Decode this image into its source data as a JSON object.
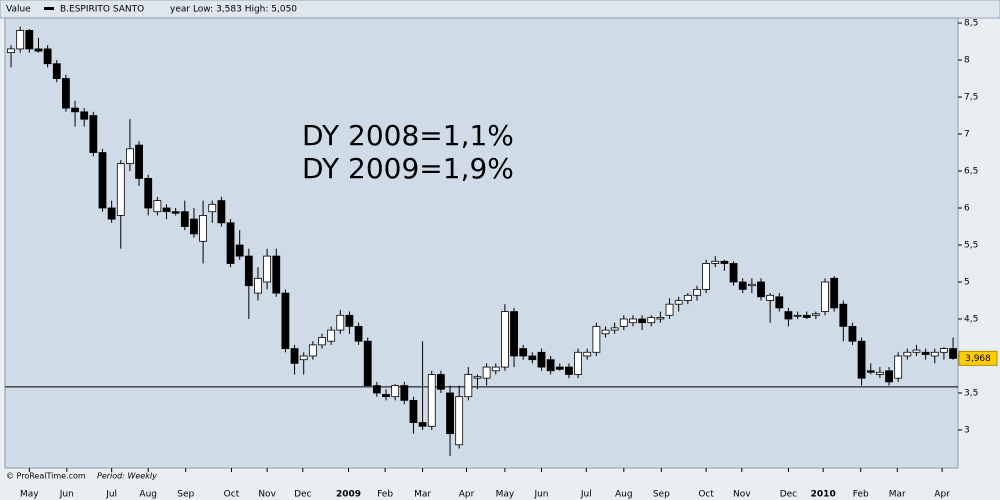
{
  "chart_data": {
    "type": "candlestick",
    "header_label": "Value",
    "series_name": "B.ESPIRITO SANTO",
    "stats": "year Low: 3,583 High: 5,050",
    "annotations": [
      "DY 2008=1,1%",
      "DY 2009=1,9%"
    ],
    "source": "© ProRealTime.com",
    "period": "Period: Weekly",
    "up_color": "#ffffff",
    "down_color": "#000000",
    "candles": [
      [
        8.1,
        8.2,
        7.9,
        8.15
      ],
      [
        8.15,
        8.45,
        8.1,
        8.4
      ],
      [
        8.4,
        8.42,
        8.1,
        8.15
      ],
      [
        8.15,
        8.3,
        8.1,
        8.12
      ],
      [
        8.15,
        8.2,
        7.9,
        7.95
      ],
      [
        7.95,
        8.0,
        7.7,
        7.75
      ],
      [
        7.75,
        7.8,
        7.3,
        7.35
      ],
      [
        7.35,
        7.45,
        7.1,
        7.3
      ],
      [
        7.3,
        7.35,
        7.1,
        7.2
      ],
      [
        7.25,
        7.3,
        6.7,
        6.75
      ],
      [
        6.75,
        6.8,
        5.95,
        6.0
      ],
      [
        6.0,
        6.1,
        5.8,
        5.85
      ],
      [
        5.9,
        6.65,
        5.45,
        6.6
      ],
      [
        6.6,
        7.2,
        6.5,
        6.8
      ],
      [
        6.85,
        6.9,
        6.3,
        6.4
      ],
      [
        6.4,
        6.45,
        5.9,
        6.0
      ],
      [
        5.95,
        6.15,
        5.9,
        6.1
      ],
      [
        6.0,
        6.05,
        5.85,
        5.95
      ],
      [
        5.95,
        6.0,
        5.9,
        5.93
      ],
      [
        5.95,
        6.1,
        5.7,
        5.75
      ],
      [
        5.85,
        6.0,
        5.6,
        5.65
      ],
      [
        5.55,
        6.1,
        5.25,
        5.9
      ],
      [
        5.95,
        6.1,
        5.8,
        6.05
      ],
      [
        6.1,
        6.15,
        5.75,
        5.8
      ],
      [
        5.8,
        5.85,
        5.2,
        5.25
      ],
      [
        5.5,
        5.7,
        5.3,
        5.35
      ],
      [
        5.35,
        5.45,
        4.5,
        4.95
      ],
      [
        4.85,
        5.2,
        4.75,
        5.05
      ],
      [
        5.0,
        5.45,
        4.9,
        5.35
      ],
      [
        5.35,
        5.45,
        4.8,
        4.85
      ],
      [
        4.85,
        4.9,
        4.05,
        4.1
      ],
      [
        4.1,
        4.15,
        3.75,
        3.9
      ],
      [
        3.95,
        4.05,
        3.75,
        4.0
      ],
      [
        4.0,
        4.2,
        3.95,
        4.15
      ],
      [
        4.15,
        4.3,
        4.1,
        4.25
      ],
      [
        4.2,
        4.4,
        4.15,
        4.35
      ],
      [
        4.35,
        4.62,
        4.3,
        4.55
      ],
      [
        4.55,
        4.6,
        4.3,
        4.4
      ],
      [
        4.4,
        4.45,
        4.15,
        4.2
      ],
      [
        4.2,
        4.25,
        3.6,
        3.6
      ],
      [
        3.6,
        3.65,
        3.45,
        3.5
      ],
      [
        3.48,
        3.55,
        3.4,
        3.45
      ],
      [
        3.45,
        3.62,
        3.4,
        3.6
      ],
      [
        3.6,
        3.65,
        3.35,
        3.4
      ],
      [
        3.4,
        3.45,
        2.95,
        3.1
      ],
      [
        3.1,
        4.2,
        3.0,
        3.05
      ],
      [
        3.05,
        3.8,
        3.0,
        3.75
      ],
      [
        3.75,
        3.8,
        3.5,
        3.55
      ],
      [
        3.5,
        3.6,
        2.65,
        2.95
      ],
      [
        2.8,
        3.6,
        2.75,
        3.45
      ],
      [
        3.45,
        3.85,
        3.4,
        3.75
      ],
      [
        3.7,
        3.75,
        3.55,
        3.72
      ],
      [
        3.7,
        3.9,
        3.6,
        3.85
      ],
      [
        3.8,
        3.9,
        3.75,
        3.85
      ],
      [
        3.85,
        4.7,
        3.8,
        4.6
      ],
      [
        4.6,
        4.65,
        3.85,
        4.0
      ],
      [
        4.1,
        4.15,
        3.95,
        4.0
      ],
      [
        4.0,
        4.05,
        3.9,
        3.95
      ],
      [
        4.05,
        4.1,
        3.8,
        3.85
      ],
      [
        3.95,
        4.0,
        3.75,
        3.8
      ],
      [
        3.85,
        3.9,
        3.8,
        3.82
      ],
      [
        3.85,
        3.9,
        3.7,
        3.75
      ],
      [
        3.75,
        4.1,
        3.7,
        4.05
      ],
      [
        4.0,
        4.1,
        3.95,
        4.05
      ],
      [
        4.05,
        4.45,
        4.0,
        4.4
      ],
      [
        4.3,
        4.4,
        4.25,
        4.35
      ],
      [
        4.35,
        4.45,
        4.3,
        4.38
      ],
      [
        4.4,
        4.55,
        4.35,
        4.5
      ],
      [
        4.45,
        4.55,
        4.4,
        4.5
      ],
      [
        4.5,
        4.55,
        4.35,
        4.45
      ],
      [
        4.45,
        4.55,
        4.4,
        4.52
      ],
      [
        4.5,
        4.6,
        4.45,
        4.52
      ],
      [
        4.55,
        4.78,
        4.5,
        4.7
      ],
      [
        4.7,
        4.8,
        4.6,
        4.75
      ],
      [
        4.75,
        4.85,
        4.7,
        4.82
      ],
      [
        4.82,
        4.95,
        4.75,
        4.9
      ],
      [
        4.9,
        5.3,
        4.85,
        5.25
      ],
      [
        5.25,
        5.35,
        5.2,
        5.28
      ],
      [
        5.28,
        5.3,
        5.15,
        5.25
      ],
      [
        5.25,
        5.28,
        4.95,
        5.0
      ],
      [
        5.0,
        5.05,
        4.85,
        4.9
      ],
      [
        4.95,
        5.05,
        4.85,
        4.97
      ],
      [
        5.0,
        5.05,
        4.75,
        4.8
      ],
      [
        4.75,
        4.85,
        4.45,
        4.82
      ],
      [
        4.8,
        4.85,
        4.6,
        4.65
      ],
      [
        4.6,
        4.65,
        4.4,
        4.5
      ],
      [
        4.55,
        4.6,
        4.5,
        4.55
      ],
      [
        4.55,
        4.6,
        4.5,
        4.52
      ],
      [
        4.55,
        4.6,
        4.5,
        4.57
      ],
      [
        4.6,
        5.05,
        4.55,
        5.0
      ],
      [
        5.05,
        5.08,
        4.6,
        4.65
      ],
      [
        4.7,
        4.75,
        4.2,
        4.4
      ],
      [
        4.4,
        4.45,
        4.15,
        4.2
      ],
      [
        4.2,
        4.25,
        3.6,
        3.7
      ],
      [
        3.8,
        3.9,
        3.75,
        3.78
      ],
      [
        3.75,
        3.85,
        3.7,
        3.78
      ],
      [
        3.8,
        3.85,
        3.6,
        3.65
      ],
      [
        3.7,
        4.05,
        3.65,
        4.0
      ],
      [
        4.0,
        4.1,
        3.95,
        4.05
      ],
      [
        4.05,
        4.15,
        4.0,
        4.08
      ],
      [
        4.05,
        4.1,
        3.95,
        4.02
      ],
      [
        4.0,
        4.1,
        3.9,
        4.05
      ],
      [
        4.05,
        4.12,
        3.95,
        4.1
      ],
      [
        4.1,
        4.25,
        3.95,
        3.968
      ]
    ],
    "xlim": [
      -0.66,
      103.54
    ],
    "xticks": [
      {
        "value": 2.0,
        "label": "May"
      },
      {
        "value": 6.1,
        "label": "Jun"
      },
      {
        "value": 11.0,
        "label": "Jul"
      },
      {
        "value": 15.0,
        "label": "Aug"
      },
      {
        "value": 19.1,
        "label": "Sep"
      },
      {
        "value": 24.1,
        "label": "Oct"
      },
      {
        "value": 28.0,
        "label": "Nov"
      },
      {
        "value": 31.9,
        "label": "Dec"
      },
      {
        "value": 36.9,
        "label": "2009"
      },
      {
        "value": 40.9,
        "label": "Feb"
      },
      {
        "value": 45.0,
        "label": "Mar"
      },
      {
        "value": 49.8,
        "label": "Apr"
      },
      {
        "value": 54.0,
        "label": "May"
      },
      {
        "value": 58.0,
        "label": "Jun"
      },
      {
        "value": 62.9,
        "label": "Jul"
      },
      {
        "value": 67.0,
        "label": "Aug"
      },
      {
        "value": 71.1,
        "label": "Sep"
      },
      {
        "value": 76.0,
        "label": "Oct"
      },
      {
        "value": 79.9,
        "label": "Nov"
      },
      {
        "value": 85.0,
        "label": "Dec"
      },
      {
        "value": 88.8,
        "label": "2010"
      },
      {
        "value": 92.9,
        "label": "Feb"
      },
      {
        "value": 96.9,
        "label": "Mar"
      },
      {
        "value": 101.8,
        "label": "Apr"
      }
    ],
    "ylim": [
      2.486,
      8.568
    ],
    "yticks": [
      3,
      {
        "value": 3.5,
        "label": "3,5"
      },
      4,
      {
        "value": 4.5,
        "label": "4,5"
      },
      5,
      {
        "value": 5.5,
        "label": "5,5"
      },
      6,
      {
        "value": 6.5,
        "label": "6,5"
      },
      7,
      {
        "value": 7.5,
        "label": "7,5"
      },
      8,
      {
        "value": 8.5,
        "label": "8,5"
      }
    ],
    "hline": 3.583,
    "last_price": {
      "value": 3.968,
      "label": "3,968"
    }
  }
}
